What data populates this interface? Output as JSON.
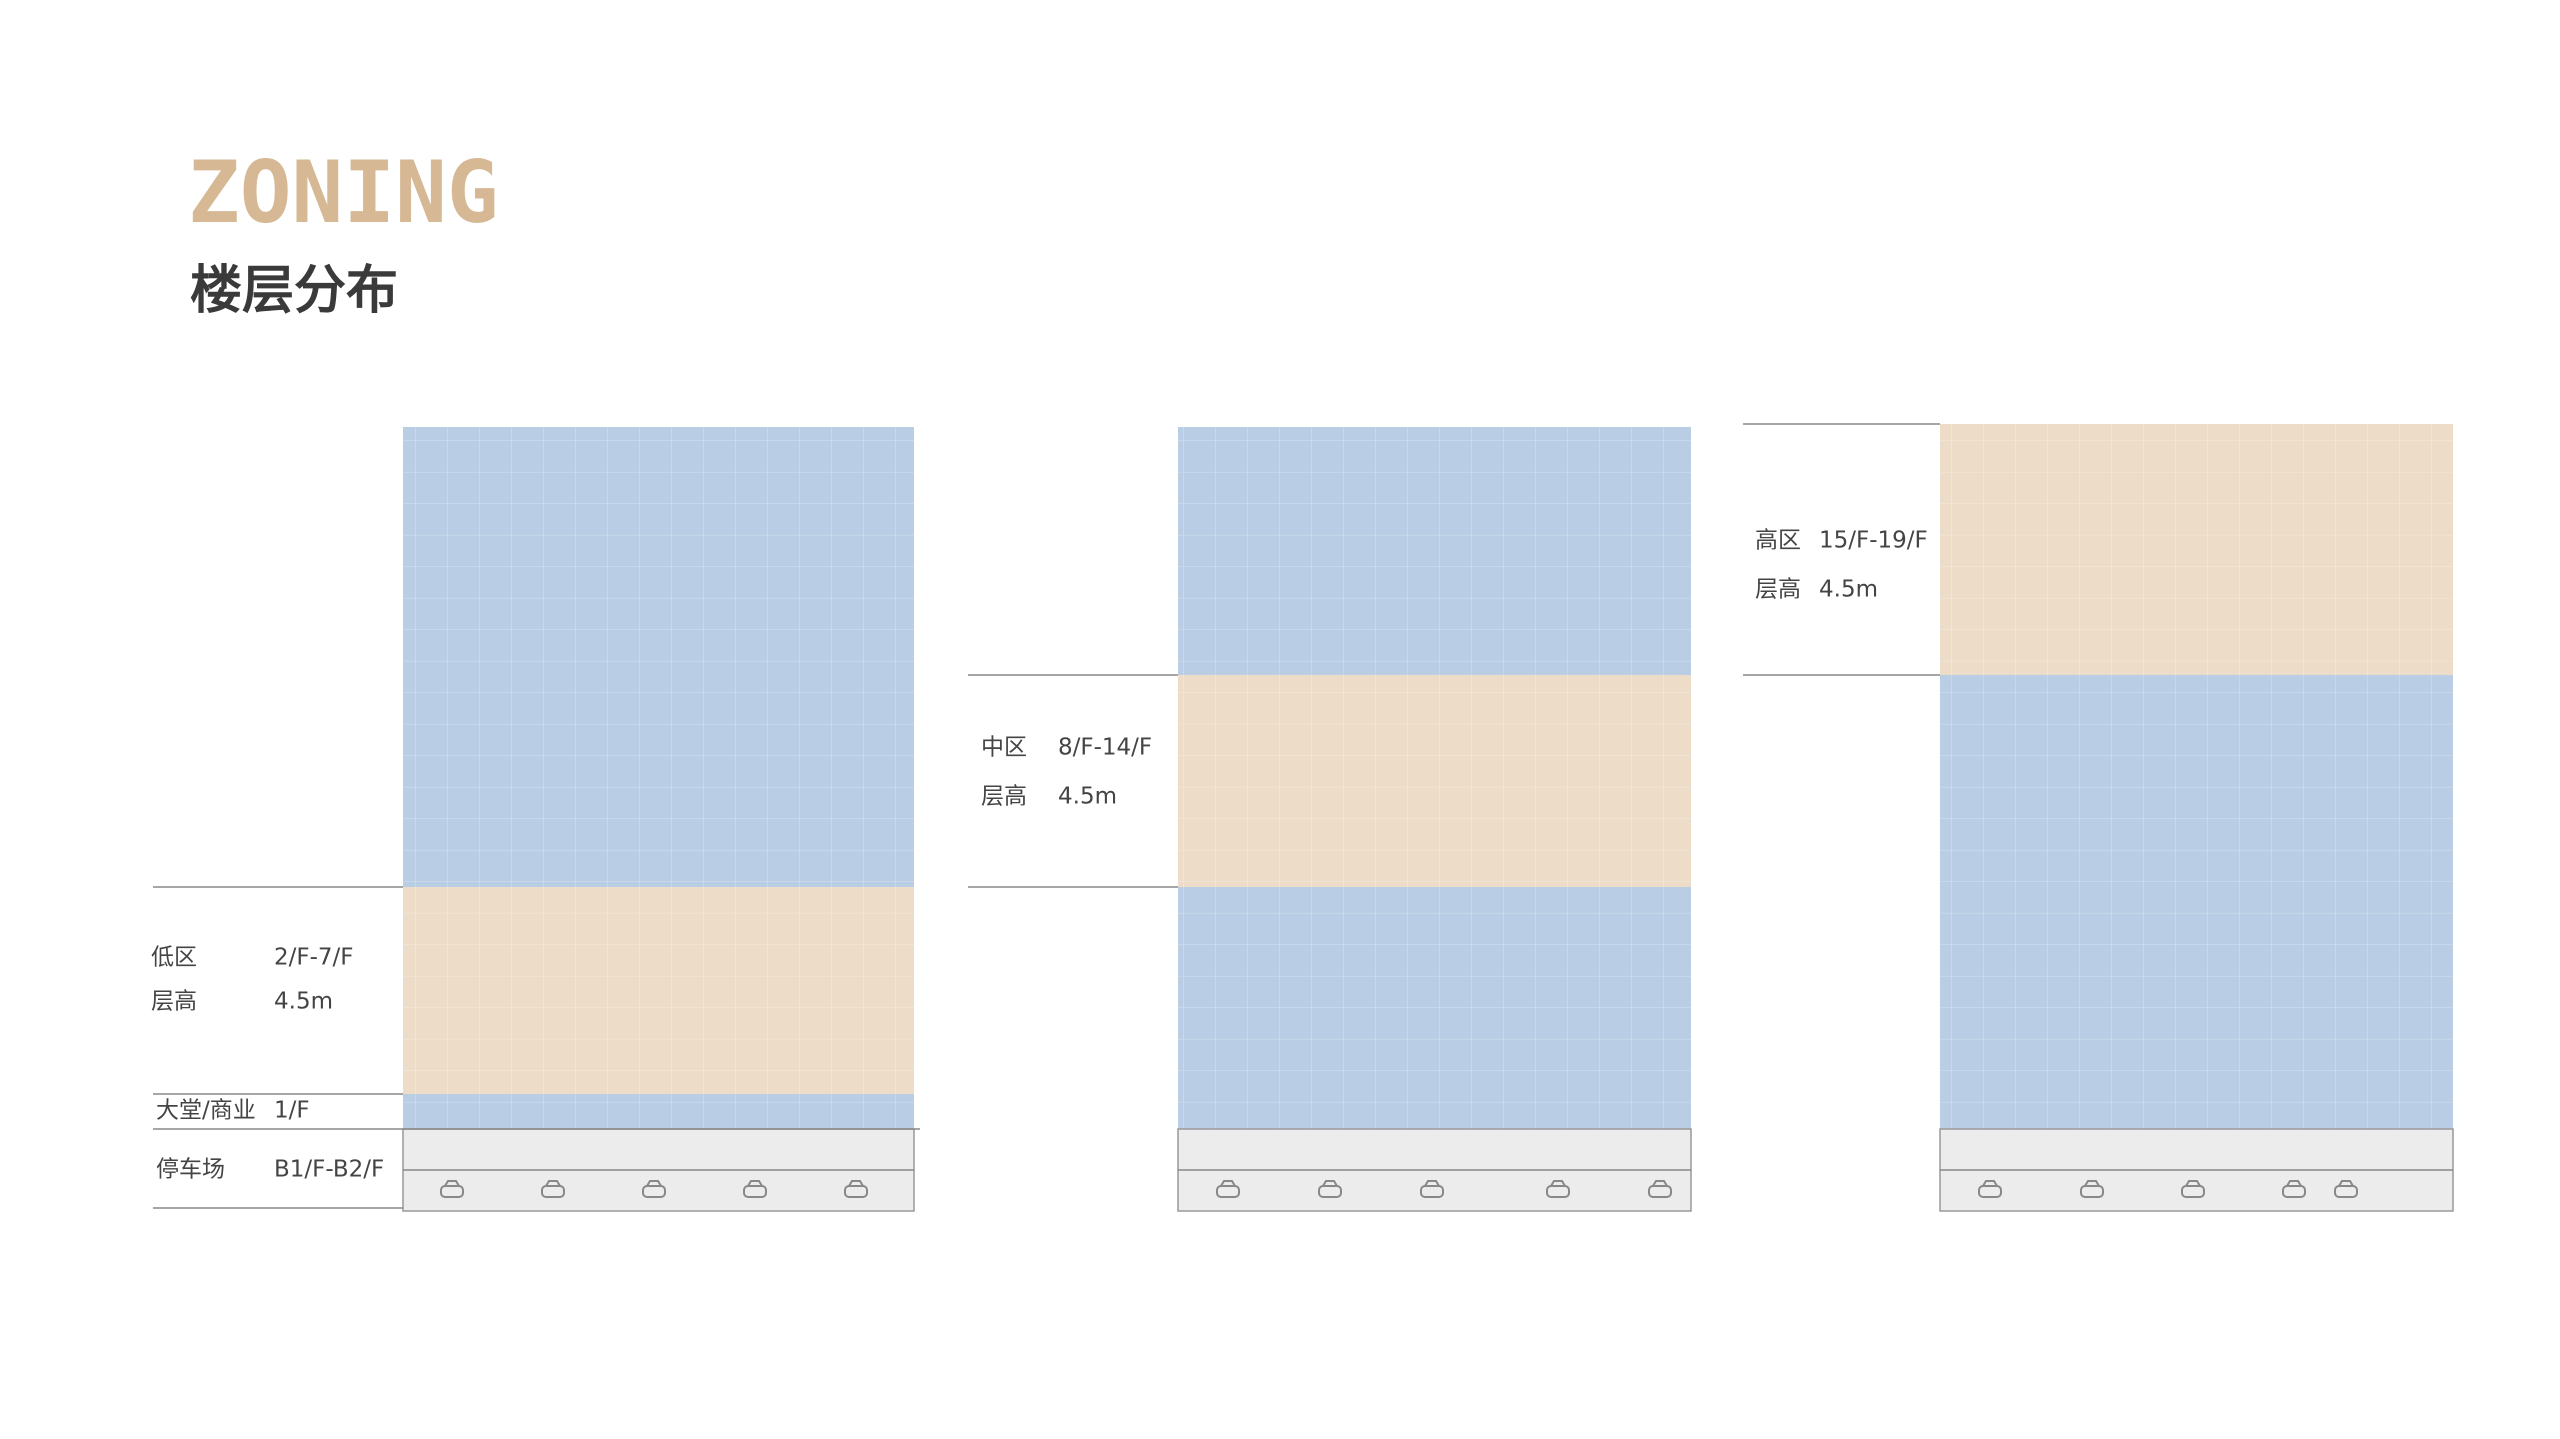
{
  "header": {
    "title": "ZONING",
    "subtitle": "楼层分布"
  },
  "buildings": [
    {
      "zones": [
        {
          "name": "低区",
          "floors": "2/F-7/F",
          "height_label": "层高",
          "height": "4.5m"
        },
        {
          "name": "大堂/商业",
          "floors": "1/F"
        },
        {
          "name": "停车场",
          "floors": "B1/F-B2/F"
        }
      ]
    },
    {
      "zones": [
        {
          "name": "中区",
          "floors": "8/F-14/F",
          "height_label": "层高",
          "height": "4.5m"
        }
      ]
    },
    {
      "zones": [
        {
          "name": "高区",
          "floors": "15/F-19/F",
          "height_label": "层高",
          "height": "4.5m"
        }
      ]
    }
  ]
}
